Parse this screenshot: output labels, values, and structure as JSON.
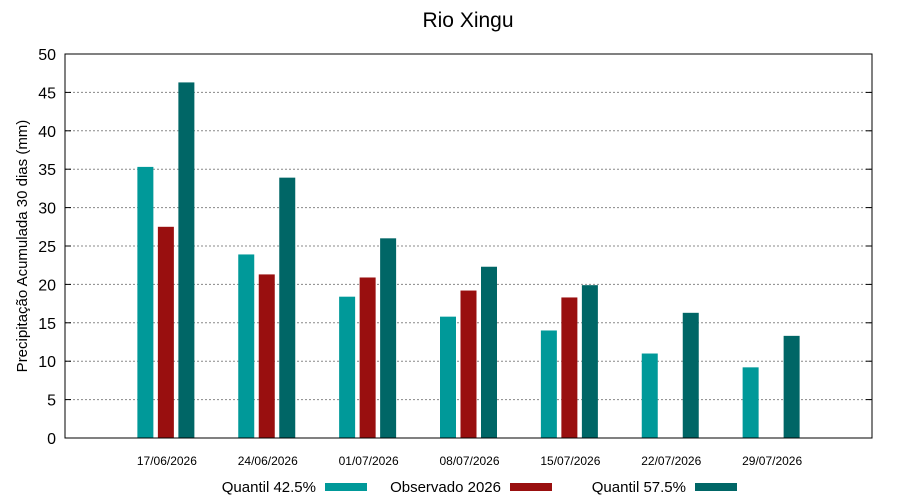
{
  "chart_data": {
    "type": "bar",
    "title": "Rio Xingu",
    "xlabel": "",
    "ylabel": "Precipitação Acumulada 30 dias (mm)",
    "ylim": [
      0,
      50
    ],
    "yticks": [
      0,
      5,
      10,
      15,
      20,
      25,
      30,
      35,
      40,
      45,
      50
    ],
    "grid": true,
    "legend_position": "bottom",
    "categories": [
      "17/06/2026",
      "24/06/2026",
      "01/07/2026",
      "08/07/2026",
      "15/07/2026",
      "22/07/2026",
      "29/07/2026"
    ],
    "series": [
      {
        "name": "Quantil 42.5%",
        "color": "#009999",
        "values": [
          35.3,
          23.9,
          18.4,
          15.8,
          14.0,
          11.0,
          9.2
        ]
      },
      {
        "name": "Observado 2026",
        "color": "#990f0f",
        "values": [
          27.5,
          21.3,
          20.9,
          19.2,
          18.3,
          null,
          null
        ]
      },
      {
        "name": "Quantil 57.5%",
        "color": "#006666",
        "values": [
          46.3,
          33.9,
          26.0,
          22.3,
          19.9,
          16.3,
          13.3
        ]
      }
    ]
  }
}
